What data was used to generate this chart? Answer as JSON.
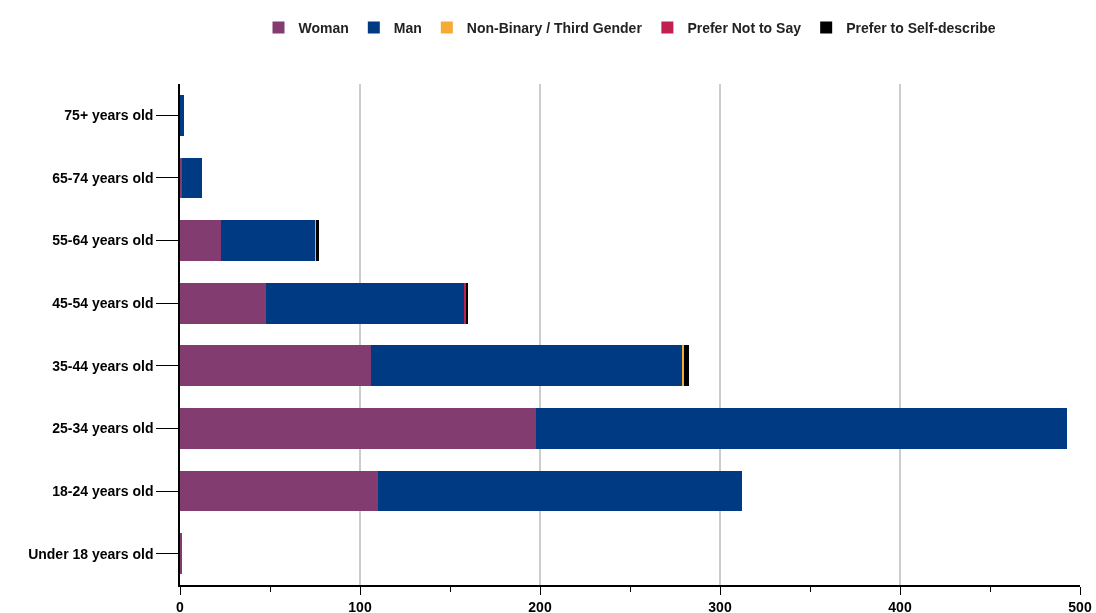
{
  "chart_data": {
    "type": "bar",
    "orientation": "horizontal",
    "stacked": true,
    "categories": [
      "75+ years old",
      "65-74 years old",
      "55-64 years old",
      "45-54 years old",
      "35-44 years old",
      "25-34 years old",
      "18-24 years old",
      "Under 18 years old"
    ],
    "series": [
      {
        "name": "Woman",
        "color": "#833c70",
        "values": [
          0,
          1,
          23,
          48,
          106,
          198,
          110,
          1
        ]
      },
      {
        "name": "Man",
        "color": "#003a82",
        "values": [
          2,
          11,
          52,
          110,
          173,
          295,
          202,
          0
        ]
      },
      {
        "name": "Non-Binary / Third Gender",
        "color": "#f5ab35",
        "values": [
          0,
          0,
          1,
          0,
          1,
          0,
          0,
          0
        ]
      },
      {
        "name": "Prefer Not to Say",
        "color": "#c0224f",
        "values": [
          0,
          0,
          0,
          1,
          0,
          0,
          0,
          0
        ]
      },
      {
        "name": "Prefer to Self-describe",
        "color": "#000000",
        "values": [
          0,
          0,
          1,
          1,
          3,
          0,
          0,
          0
        ]
      }
    ],
    "xlim": [
      0,
      500
    ],
    "xticks": [
      0,
      100,
      200,
      300,
      400,
      500
    ],
    "grid": "x",
    "legend": "top"
  }
}
